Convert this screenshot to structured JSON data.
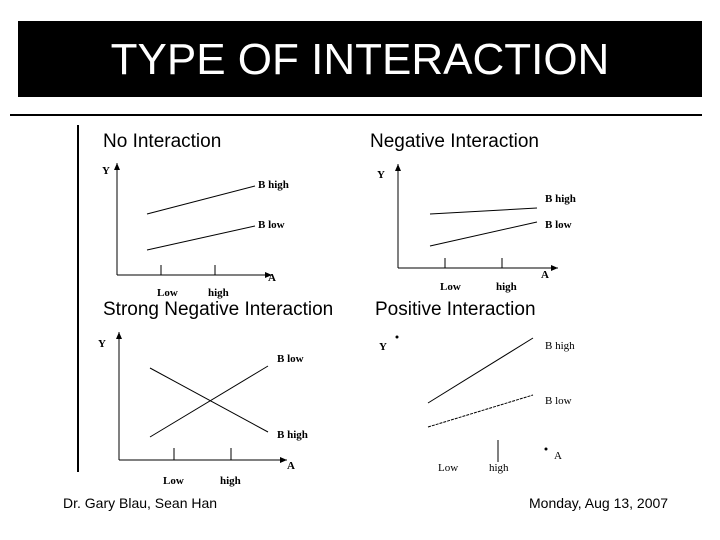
{
  "title": "TYPE OF INTERACTION",
  "headings": {
    "no_interaction": "No Interaction",
    "negative_interaction": "Negative Interaction",
    "strong_negative_interaction": "Strong Negative Interaction",
    "positive_interaction": "Positive Interaction"
  },
  "panels": {
    "no_interaction": {
      "y_axis": "Y",
      "x_axis": "A",
      "x_low": "Low",
      "x_high": "high",
      "line_top": "B high",
      "line_bottom": "B low"
    },
    "negative_interaction": {
      "y_axis": "Y",
      "x_axis": "A",
      "x_low": "Low",
      "x_high": "high",
      "line_top": "B high",
      "line_bottom": "B low"
    },
    "strong_negative_interaction": {
      "y_axis": "Y",
      "x_axis": "A",
      "x_low": "Low",
      "x_high": "high",
      "line_top": "B low",
      "line_bottom": "B  high"
    },
    "positive_interaction": {
      "y_axis": "Y",
      "x_axis": "A",
      "x_low": "Low",
      "x_high": "high",
      "line_top": "B high",
      "line_bottom": "B low"
    }
  },
  "footer": {
    "left": "Dr. Gary Blau, Sean Han",
    "right": "Monday, Aug 13, 2007"
  }
}
